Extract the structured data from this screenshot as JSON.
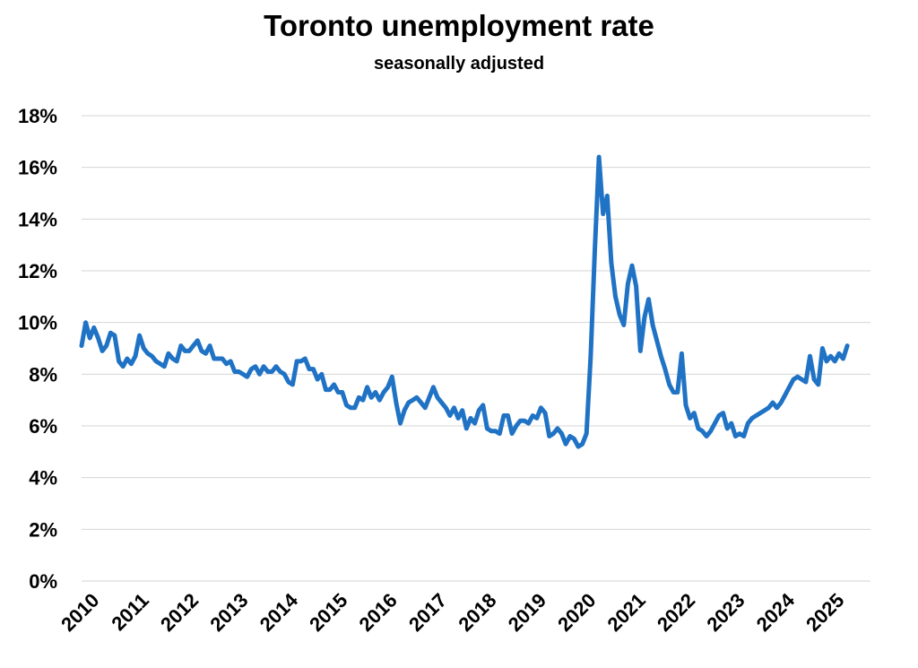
{
  "chart_data": {
    "type": "line",
    "title": "Toronto unemployment rate",
    "subtitle": "seasonally adjusted",
    "xlabel": "",
    "ylabel": "",
    "ylim": [
      0,
      18
    ],
    "yticks": [
      "0%",
      "2%",
      "4%",
      "6%",
      "8%",
      "10%",
      "12%",
      "14%",
      "16%",
      "18%"
    ],
    "x_tick_labels": [
      "2010",
      "2011",
      "2012",
      "2013",
      "2014",
      "2015",
      "2016",
      "2017",
      "2018",
      "2019",
      "2020",
      "2021",
      "2022",
      "2023",
      "2024",
      "2025"
    ],
    "x_range": [
      "2010-01",
      "2025-06"
    ],
    "grid": true,
    "legend": "none",
    "line_color": "#1f72c4",
    "series": [
      {
        "values": [
          9.1,
          10.0,
          9.4,
          9.8,
          9.4,
          8.9,
          9.1,
          9.6,
          9.5,
          8.5,
          8.3,
          8.6,
          8.4,
          8.7,
          9.5,
          9.0,
          8.8,
          8.7,
          8.5,
          8.4,
          8.3,
          8.8,
          8.6,
          8.5,
          9.1,
          8.9,
          8.9,
          9.1,
          9.3,
          8.9,
          8.8,
          9.1,
          8.6,
          8.6,
          8.6,
          8.4,
          8.5,
          8.1,
          8.1,
          8.0,
          7.9,
          8.2,
          8.3,
          8.0,
          8.3,
          8.1,
          8.1,
          8.3,
          8.1,
          8.0,
          7.7,
          7.6,
          8.5,
          8.5,
          8.6,
          8.2,
          8.2,
          7.8,
          8.0,
          7.4,
          7.4,
          7.6,
          7.3,
          7.3,
          6.8,
          6.7,
          6.7,
          7.1,
          7.0,
          7.5,
          7.1,
          7.3,
          7.0,
          7.3,
          7.5,
          7.9,
          6.9,
          6.1,
          6.6,
          6.9,
          7.0,
          7.1,
          6.9,
          6.7,
          7.1,
          7.5,
          7.1,
          6.9,
          6.7,
          6.4,
          6.7,
          6.3,
          6.6,
          5.9,
          6.3,
          6.1,
          6.6,
          6.8,
          5.9,
          5.8,
          5.8,
          5.7,
          6.4,
          6.4,
          5.7,
          6.0,
          6.2,
          6.2,
          6.1,
          6.4,
          6.3,
          6.7,
          6.5,
          5.6,
          5.7,
          5.9,
          5.7,
          5.3,
          5.6,
          5.5,
          5.2,
          5.3,
          5.7,
          8.7,
          12.8,
          16.4,
          14.2,
          14.9,
          12.3,
          11.0,
          10.3,
          9.9,
          11.5,
          12.2,
          11.4,
          8.9,
          10.2,
          10.9,
          9.9,
          9.3,
          8.7,
          8.2,
          7.6,
          7.3,
          7.3,
          8.8,
          6.8,
          6.3,
          6.5,
          5.9,
          5.8,
          5.6,
          5.8,
          6.1,
          6.4,
          6.5,
          5.9,
          6.1,
          5.6,
          5.7,
          5.6,
          6.1,
          6.3,
          6.4,
          6.5,
          6.6,
          6.7,
          6.9,
          6.7,
          6.9,
          7.2,
          7.5,
          7.8,
          7.9,
          7.8,
          7.7,
          8.7,
          7.8,
          7.6,
          9.0,
          8.5,
          8.7,
          8.5,
          8.8,
          8.6,
          9.1
        ]
      }
    ]
  }
}
